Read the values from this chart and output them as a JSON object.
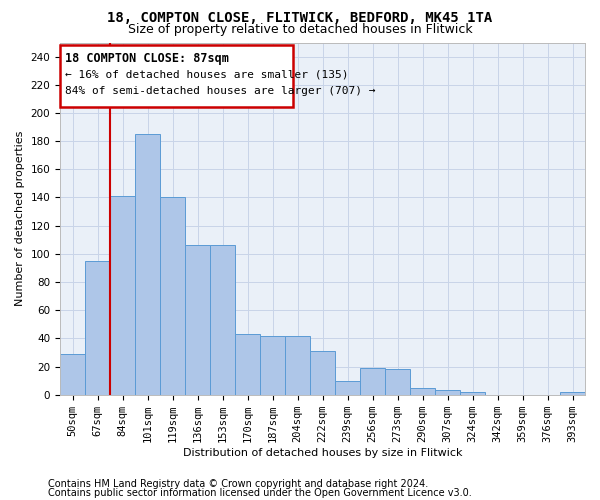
{
  "title1": "18, COMPTON CLOSE, FLITWICK, BEDFORD, MK45 1TA",
  "title2": "Size of property relative to detached houses in Flitwick",
  "xlabel": "Distribution of detached houses by size in Flitwick",
  "ylabel": "Number of detached properties",
  "footer1": "Contains HM Land Registry data © Crown copyright and database right 2024.",
  "footer2": "Contains public sector information licensed under the Open Government Licence v3.0.",
  "annotation_title": "18 COMPTON CLOSE: 87sqm",
  "annotation_line1": "← 16% of detached houses are smaller (135)",
  "annotation_line2": "84% of semi-detached houses are larger (707) →",
  "bar_labels": [
    "50sqm",
    "67sqm",
    "84sqm",
    "101sqm",
    "119sqm",
    "136sqm",
    "153sqm",
    "170sqm",
    "187sqm",
    "204sqm",
    "222sqm",
    "239sqm",
    "256sqm",
    "273sqm",
    "290sqm",
    "307sqm",
    "324sqm",
    "342sqm",
    "359sqm",
    "376sqm",
    "393sqm"
  ],
  "bar_values": [
    29,
    95,
    141,
    185,
    140,
    106,
    106,
    43,
    42,
    42,
    31,
    10,
    19,
    18,
    5,
    3,
    2,
    0,
    0,
    0,
    2
  ],
  "bar_color": "#aec6e8",
  "bar_edge_color": "#5b9bd5",
  "red_line_index": 2,
  "ylim": [
    0,
    250
  ],
  "yticks": [
    0,
    20,
    40,
    60,
    80,
    100,
    120,
    140,
    160,
    180,
    200,
    220,
    240
  ],
  "background_color": "#ffffff",
  "axes_bg_color": "#eaf0f8",
  "grid_color": "#c8d4e8",
  "annotation_box_color": "#ffffff",
  "annotation_box_edge": "#cc0000",
  "red_line_color": "#cc0000",
  "title_fontsize": 10,
  "subtitle_fontsize": 9,
  "label_fontsize": 8,
  "tick_fontsize": 7.5,
  "footer_fontsize": 7
}
